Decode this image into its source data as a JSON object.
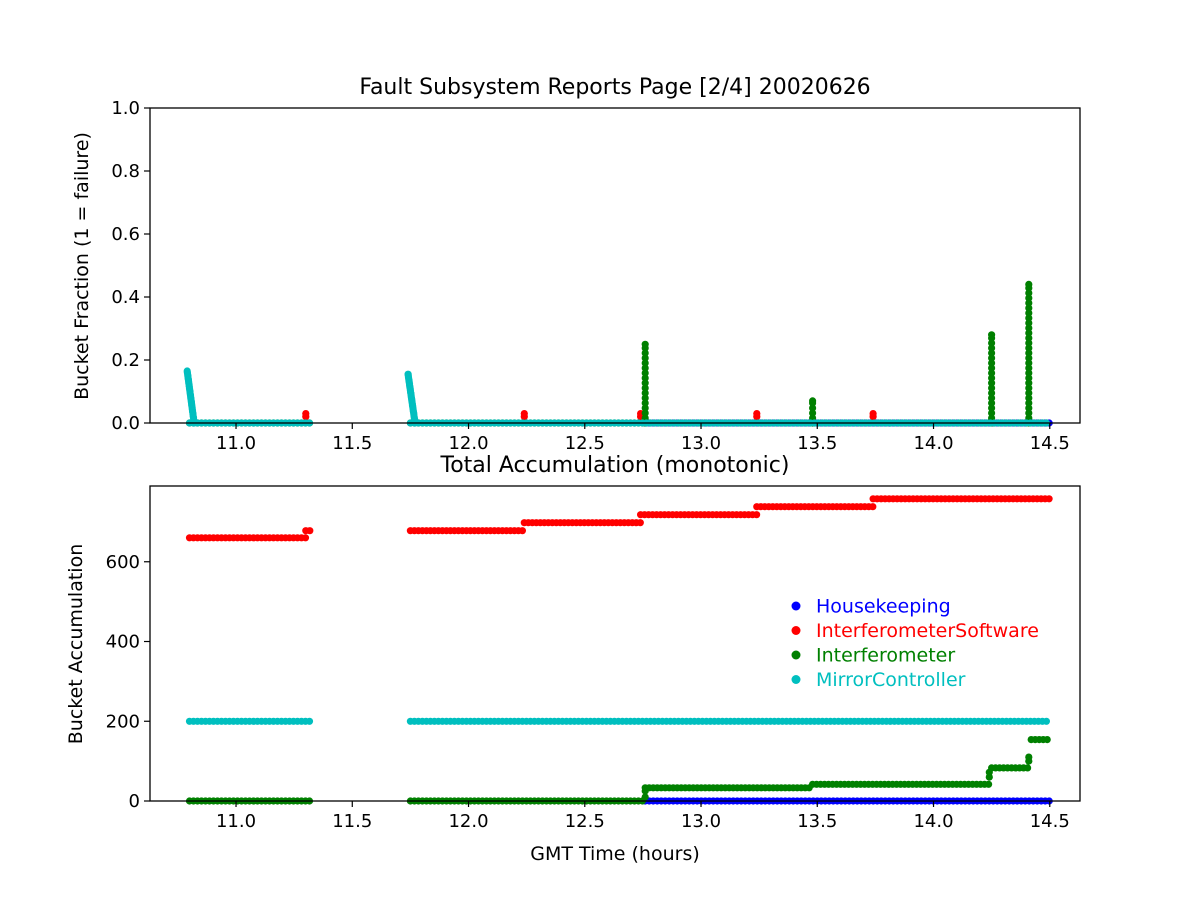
{
  "chart_data": [
    {
      "type": "scatter",
      "title": "Fault Subsystem Reports Page [2/4] 20020626",
      "xlabel": "",
      "ylabel": "Bucket Fraction (1 = failure)",
      "xlim": [
        10.63,
        14.63
      ],
      "ylim": [
        0,
        1.0
      ],
      "xticks": [
        "11.0",
        "11.5",
        "12.0",
        "12.5",
        "13.0",
        "13.5",
        "14.0",
        "14.5"
      ],
      "yticks": [
        "0.0",
        "0.2",
        "0.4",
        "0.6",
        "0.8",
        "1.0"
      ],
      "grid": false,
      "colors": {
        "Housekeeping": "#0000ff",
        "InterferometerSoftware": "#ff0000",
        "Interferometer": "#008000",
        "MirrorController": "#00bfbf"
      },
      "series": [
        {
          "name": "Housekeeping",
          "segments": [
            {
              "x0": 12.76,
              "x1": 14.5,
              "y": 0.0
            }
          ],
          "points": []
        },
        {
          "name": "InterferometerSoftware",
          "segments": [],
          "points": [
            {
              "x": 11.3,
              "y": 0.03
            },
            {
              "x": 11.3,
              "y": 0.02
            },
            {
              "x": 12.24,
              "y": 0.03
            },
            {
              "x": 12.24,
              "y": 0.02
            },
            {
              "x": 12.74,
              "y": 0.03
            },
            {
              "x": 12.74,
              "y": 0.02
            },
            {
              "x": 13.24,
              "y": 0.03
            },
            {
              "x": 13.24,
              "y": 0.02
            },
            {
              "x": 13.74,
              "y": 0.03
            },
            {
              "x": 13.74,
              "y": 0.02
            }
          ]
        },
        {
          "name": "Interferometer",
          "segments": [
            {
              "x0": 10.8,
              "x1": 11.33,
              "y": 0.0
            },
            {
              "x0": 11.75,
              "x1": 14.5,
              "y": 0.0
            }
          ],
          "points": [],
          "stems": [
            {
              "x": 12.76,
              "ymax": 0.25
            },
            {
              "x": 13.48,
              "ymax": 0.07
            },
            {
              "x": 14.25,
              "ymax": 0.28
            },
            {
              "x": 14.41,
              "ymax": 0.44
            }
          ]
        },
        {
          "name": "MirrorController",
          "segments": [
            {
              "x0": 10.8,
              "x1": 11.33,
              "y": 0.0
            },
            {
              "x0": 11.75,
              "x1": 14.5,
              "y": 0.0
            }
          ],
          "points": [],
          "decays": [
            {
              "x0": 10.79,
              "x1": 10.82,
              "y0": 0.165
            },
            {
              "x0": 11.74,
              "x1": 11.77,
              "y0": 0.155
            }
          ]
        }
      ]
    },
    {
      "type": "scatter",
      "title": "Total Accumulation (monotonic)",
      "xlabel": "GMT Time (hours)",
      "ylabel": "Bucket Accumulation",
      "xlim": [
        10.63,
        14.63
      ],
      "ylim": [
        0,
        790
      ],
      "xticks": [
        "11.0",
        "11.5",
        "12.0",
        "12.5",
        "13.0",
        "13.5",
        "14.0",
        "14.5"
      ],
      "yticks": [
        "0",
        "200",
        "400",
        "600"
      ],
      "grid": false,
      "legend": {
        "placement": "center-right",
        "entries": [
          "Housekeeping",
          "InterferometerSoftware",
          "Interferometer",
          "MirrorController"
        ]
      },
      "series": [
        {
          "name": "Housekeeping",
          "segments": [
            {
              "x0": 12.76,
              "x1": 14.5,
              "y": 0
            }
          ]
        },
        {
          "name": "InterferometerSoftware",
          "segments": [
            {
              "x0": 10.8,
              "x1": 11.3,
              "y": 660
            },
            {
              "x0": 11.3,
              "x1": 11.33,
              "y": 678
            },
            {
              "x0": 11.75,
              "x1": 12.24,
              "y": 678
            },
            {
              "x0": 12.24,
              "x1": 12.74,
              "y": 698
            },
            {
              "x0": 12.74,
              "x1": 13.24,
              "y": 718
            },
            {
              "x0": 13.24,
              "x1": 13.74,
              "y": 738
            },
            {
              "x0": 13.74,
              "x1": 14.5,
              "y": 758
            }
          ]
        },
        {
          "name": "Interferometer",
          "segments": [
            {
              "x0": 10.8,
              "x1": 11.33,
              "y": 0
            },
            {
              "x0": 11.75,
              "x1": 12.76,
              "y": 0
            },
            {
              "x0": 12.76,
              "x1": 13.48,
              "y": 33
            },
            {
              "x0": 13.48,
              "x1": 14.25,
              "y": 42
            },
            {
              "x0": 14.25,
              "x1": 14.41,
              "y": 83
            },
            {
              "x0": 14.42,
              "x1": 14.5,
              "y": 154
            }
          ],
          "points": [
            {
              "x": 12.76,
              "y": 10
            },
            {
              "x": 12.76,
              "y": 25
            },
            {
              "x": 14.24,
              "y": 60
            },
            {
              "x": 14.24,
              "y": 72
            },
            {
              "x": 14.41,
              "y": 100
            },
            {
              "x": 14.41,
              "y": 110
            }
          ]
        },
        {
          "name": "MirrorController",
          "segments": [
            {
              "x0": 10.8,
              "x1": 11.33,
              "y": 200
            },
            {
              "x0": 11.75,
              "x1": 14.5,
              "y": 200
            }
          ]
        }
      ]
    }
  ]
}
